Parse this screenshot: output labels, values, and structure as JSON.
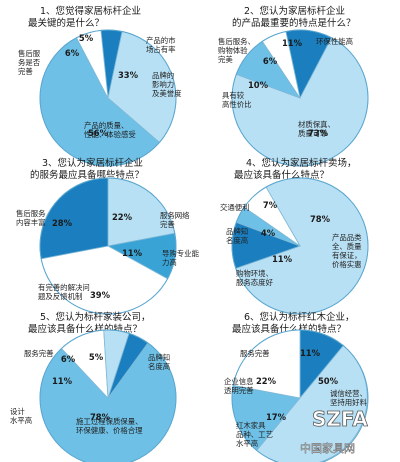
{
  "colors": {
    "c1": "#1b7fbf",
    "c2": "#3aa3d6",
    "c3": "#6ec0e6",
    "c4": "#b8e0f4",
    "c5": "#ffffff",
    "stroke": "#ffffff"
  },
  "watermark": {
    "logo": "SZFA",
    "sitename": "中国家具网"
  },
  "chart_data": [
    {
      "type": "pie",
      "title": "1、您觉得家居标杆企业最关键的是什么？",
      "title_lines": [
        "1、您觉得家居标杆企业",
        "最关键的是什么？"
      ],
      "slices": [
        {
          "label": "产品的市场占有率",
          "label_lines": [
            "产品的市",
            "场占有率"
          ],
          "value": 5,
          "color": "c1",
          "pct": "5%"
        },
        {
          "label": "品牌的影响力及美誉度",
          "label_lines": [
            "品牌的",
            "影响力",
            "及美誉度"
          ],
          "value": 33,
          "color": "c4",
          "pct": "33%"
        },
        {
          "label": "产品的质量、性能、体验感受",
          "label_lines": [
            "产品的质量、",
            "性能、体验感受"
          ],
          "value": 56,
          "color": "c3",
          "pct": "56%"
        },
        {
          "label": "售后服务是否完善",
          "label_lines": [
            "售后服",
            "务是否",
            "完善"
          ],
          "value": 6,
          "color": "c5",
          "pct": "6%"
        }
      ]
    },
    {
      "type": "pie",
      "title": "2、您认为家居标杆企业的产品最重要的特点是什么？",
      "title_lines": [
        "2、您认为家居标杆企业",
        "的产品最重要的特点是什么？"
      ],
      "slices": [
        {
          "label": "环保性能高",
          "label_lines": [
            "环保性能高"
          ],
          "value": 11,
          "color": "c1",
          "pct": "11%"
        },
        {
          "label": "材质保真、质量可靠",
          "label_lines": [
            "材质保真、",
            "质量可靠"
          ],
          "value": 73,
          "color": "c4",
          "pct": "73%"
        },
        {
          "label": "具有较高性价比",
          "label_lines": [
            "具有较",
            "高性价比"
          ],
          "value": 10,
          "color": "c3",
          "pct": "10%"
        },
        {
          "label": "售后服务、购物体验完美",
          "label_lines": [
            "售后服务、",
            "购物体验",
            "完美"
          ],
          "value": 6,
          "color": "c5",
          "pct": "6%"
        }
      ]
    },
    {
      "type": "pie",
      "title": "3、您认为家居标杆企业的服务最应具备哪些特点？",
      "title_lines": [
        "3、您认为家居标杆企业",
        "的服务最应具备哪些特点？"
      ],
      "slices": [
        {
          "label": "服务网络完善",
          "label_lines": [
            "服务网络",
            "完善"
          ],
          "value": 22,
          "color": "c4",
          "pct": "22%"
        },
        {
          "label": "导购专业能力高",
          "label_lines": [
            "导购专业能",
            "力高"
          ],
          "value": 11,
          "color": "c2",
          "pct": "11%"
        },
        {
          "label": "有完善的解决问题及反馈机制",
          "label_lines": [
            "有完善的解决问",
            "题及反馈机制"
          ],
          "value": 39,
          "color": "c5",
          "pct": "39%"
        },
        {
          "label": "售后服务内容丰富",
          "label_lines": [
            "售后服务",
            "内容丰富"
          ],
          "value": 28,
          "color": "c1",
          "pct": "28%"
        }
      ]
    },
    {
      "type": "pie",
      "title": "4、您认为家居标杆卖场，最应该具备什么特点？",
      "title_lines": [
        "4、您认为家居标杆卖场，",
        "最应该具备什么特点？"
      ],
      "slices": [
        {
          "label": "产品品类全、质量有保证，价格实惠",
          "label_lines": [
            "产品品类",
            "全、质量",
            "有保证，",
            "价格实惠"
          ],
          "value": 78,
          "color": "c4",
          "pct": "78%"
        },
        {
          "label": "购物环境、服务态度好",
          "label_lines": [
            "购物环境、",
            "服务态度好"
          ],
          "value": 11,
          "color": "c1",
          "pct": "11%"
        },
        {
          "label": "品牌知名度高",
          "label_lines": [
            "品牌知",
            "名度高"
          ],
          "value": 4,
          "color": "c3",
          "pct": "4%"
        },
        {
          "label": "交通便利",
          "label_lines": [
            "交通便利"
          ],
          "value": 7,
          "color": "c5",
          "pct": "7%"
        }
      ]
    },
    {
      "type": "pie",
      "title": "5、您认为标杆家装公司，最应该具备什么样的特点？",
      "title_lines": [
        "5、您认为标杆家装公司，",
        "最应该具备什么样的特点？"
      ],
      "slices": [
        {
          "label": "品牌知名度高",
          "label_lines": [
            "品牌知",
            "名度高"
          ],
          "value": 5,
          "color": "c1",
          "pct": "5%"
        },
        {
          "label": "施工过程保质保量、环保健康、价格合理",
          "label_lines": [
            "施工过程保质保量、",
            "环保健康、价格合理"
          ],
          "value": 78,
          "color": "c3",
          "pct": "78%"
        },
        {
          "label": "设计水平高",
          "label_lines": [
            "设计",
            "水平高"
          ],
          "value": 11,
          "color": "c5",
          "pct": "11%"
        },
        {
          "label": "服务完善",
          "label_lines": [
            "服务完善"
          ],
          "value": 6,
          "color": "c4",
          "pct": "6%"
        }
      ]
    },
    {
      "type": "pie",
      "title": "6、您认为标杆红木企业，最应该具备什么样的特点？",
      "title_lines": [
        "6、您认为标杆红木企业，",
        "最应该具备什么样的特点？"
      ],
      "slices": [
        {
          "label": "服务完善",
          "label_lines": [
            "服务完善"
          ],
          "value": 11,
          "color": "c1",
          "pct": "11%"
        },
        {
          "label": "诚信经营、坚持用好料",
          "label_lines": [
            "诚信经营、",
            "坚持用好料"
          ],
          "value": 50,
          "color": "c4",
          "pct": "50%"
        },
        {
          "label": "红木家具品种、工艺水平高",
          "label_lines": [
            "红木家具",
            "品种、工艺",
            "水平高"
          ],
          "value": 17,
          "color": "c3",
          "pct": "17%"
        },
        {
          "label": "企业信息透明完善",
          "label_lines": [
            "企业信息",
            "透明完善"
          ],
          "value": 22,
          "color": "c5",
          "pct": "22%"
        }
      ]
    }
  ]
}
